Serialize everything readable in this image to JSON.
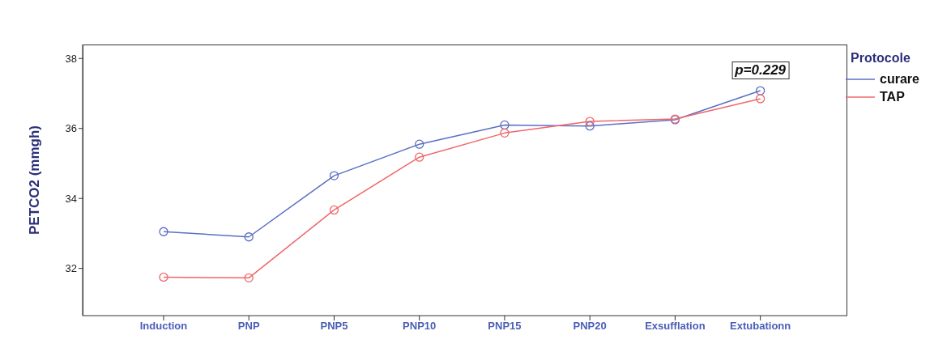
{
  "chart_data": {
    "type": "line",
    "ylabel": "PETCO2 (mmgh)",
    "legend_title": "Protocole",
    "categories": [
      "Induction",
      "PNP",
      "PNP5",
      "PNP10",
      "PNP15",
      "PNP20",
      "Exsufflation",
      "Extubationn"
    ],
    "series": [
      {
        "name": "curare",
        "color": "#5b6fc4",
        "values": [
          33.05,
          32.9,
          34.65,
          35.55,
          36.1,
          36.07,
          36.25,
          37.08
        ]
      },
      {
        "name": "TAP",
        "color": "#f0676a",
        "values": [
          31.75,
          31.73,
          33.67,
          35.18,
          35.87,
          36.2,
          36.27,
          36.85
        ]
      }
    ],
    "ylim": [
      30.65,
      38.4
    ],
    "yticks": [
      32,
      34,
      36,
      38
    ],
    "grid": false,
    "legend": "top right",
    "marker": "circle",
    "line_style": "solid",
    "annotations": [
      "p=0.229"
    ]
  }
}
